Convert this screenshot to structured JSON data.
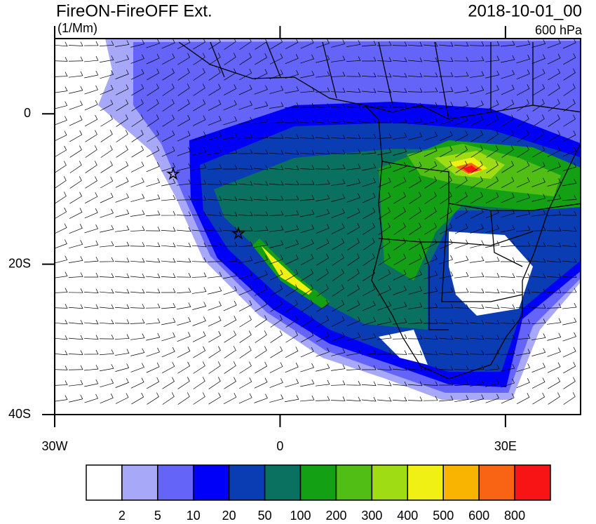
{
  "header": {
    "title": "FireON-FireOFF Ext.",
    "units": "(1/Mm)",
    "date": "2018-10-01_00",
    "level": "600 hPa"
  },
  "map": {
    "lon_range": [
      -30,
      40
    ],
    "lat_range": [
      -40,
      10
    ],
    "lon_ticks": [
      {
        "value": -30,
        "label": "30W"
      },
      0,
      {
        "value": 30,
        "label": "30E"
      }
    ],
    "lat_ticks": [
      0,
      {
        "value": -20,
        "label": "20S"
      },
      {
        "value": -40,
        "label": "40S"
      }
    ]
  },
  "colorbar": {
    "colors": [
      "#ffffff",
      "#a8a8f8",
      "#6464f8",
      "#0000f8",
      "#0a3cb4",
      "#0a7060",
      "#14a014",
      "#50be14",
      "#a0dc14",
      "#f0f014",
      "#f8b400",
      "#f86414",
      "#f81414"
    ],
    "labels": [
      2,
      5,
      10,
      20,
      50,
      100,
      200,
      300,
      400,
      500,
      600,
      800
    ]
  }
}
